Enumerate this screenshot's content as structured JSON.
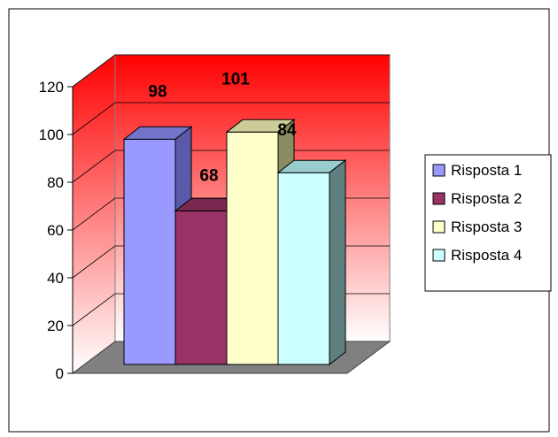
{
  "chart_data": {
    "type": "bar",
    "title": "",
    "xlabel": "",
    "ylabel": "",
    "ylim": [
      0,
      120
    ],
    "yticks": [
      "0",
      "20",
      "40",
      "60",
      "80",
      "100",
      "120"
    ],
    "grid": true,
    "legend_position": "right",
    "style": "3d-clustered-column",
    "series": [
      {
        "name": "Risposta 1",
        "label": "98",
        "value": 98,
        "color": "#9999ff",
        "side": "#5a5aa8",
        "top": "#7373c8"
      },
      {
        "name": "Risposta 2",
        "label": "68",
        "value": 68,
        "color": "#993366",
        "side": "#5e1f3f",
        "top": "#7a2850"
      },
      {
        "name": "Risposta 3",
        "label": "101",
        "value": 101,
        "color": "#ffffcc",
        "side": "#8c8c62",
        "top": "#cccc99"
      },
      {
        "name": "Risposta 4",
        "label": "84",
        "value": 84,
        "color": "#ccffff",
        "side": "#5f8080",
        "top": "#99cccc"
      }
    ],
    "colors": {
      "wall_top": "#ff0000",
      "wall_bottom": "#ffffff",
      "floor": "#808080",
      "axis": "#000000",
      "grid": "#000000"
    }
  }
}
